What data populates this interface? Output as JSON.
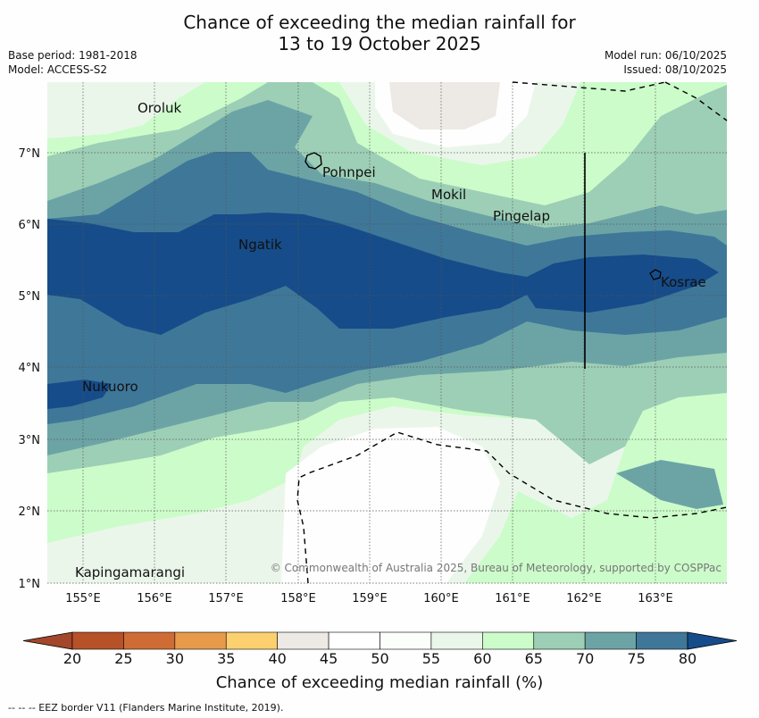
{
  "title_line1": "Chance of exceeding the median rainfall for",
  "title_line2": "13 to 19 October 2025",
  "base_period": "Base period: 1981-2018",
  "model": "Model: ACCESS-S2",
  "model_run": "Model run: 06/10/2025",
  "issued": "Issued: 08/10/2025",
  "copyright": "© Commonwealth of Australia 2025, Bureau of Meteorology, supported by COSPPac",
  "x_ticks": [
    "155°E",
    "156°E",
    "157°E",
    "158°E",
    "159°E",
    "160°E",
    "161°E",
    "162°E",
    "163°E"
  ],
  "y_ticks": [
    "7°N",
    "6°N",
    "5°N",
    "4°N",
    "3°N",
    "2°N",
    "1°N"
  ],
  "places": [
    "Oroluk",
    "Pohnpei",
    "Mokil",
    "Pingelap",
    "Ngatik",
    "Kosrae",
    "Nukuoro",
    "Kapingamarangi"
  ],
  "colorbar": {
    "ticks": [
      "20",
      "25",
      "30",
      "35",
      "40",
      "45",
      "50",
      "55",
      "60",
      "65",
      "70",
      "75",
      "80"
    ],
    "colors": [
      "#a3462b",
      "#b65128",
      "#cf6b35",
      "#e69a4a",
      "#fdd06f",
      "#ede9e4",
      "#ffffff",
      "#fcfefc",
      "#ebf6eb",
      "#ccfcca",
      "#9dcfb6",
      "#6ca4a6",
      "#3f7799",
      "#164c89"
    ],
    "label": "Chance of exceeding median rainfall (%)"
  },
  "footnote": "--  --  -- EEZ border V11 (Flanders Marine Institute, 2019)."
}
